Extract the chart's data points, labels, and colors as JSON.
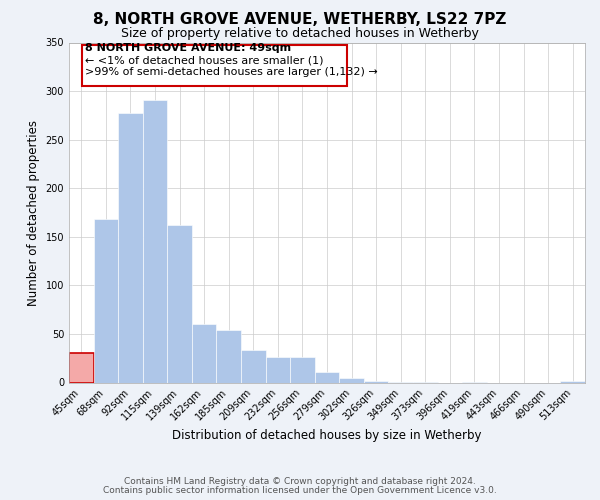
{
  "title": "8, NORTH GROVE AVENUE, WETHERBY, LS22 7PZ",
  "subtitle": "Size of property relative to detached houses in Wetherby",
  "xlabel": "Distribution of detached houses by size in Wetherby",
  "ylabel": "Number of detached properties",
  "bar_labels": [
    "45sqm",
    "68sqm",
    "92sqm",
    "115sqm",
    "139sqm",
    "162sqm",
    "185sqm",
    "209sqm",
    "232sqm",
    "256sqm",
    "279sqm",
    "302sqm",
    "326sqm",
    "349sqm",
    "373sqm",
    "396sqm",
    "419sqm",
    "443sqm",
    "466sqm",
    "490sqm",
    "513sqm"
  ],
  "bar_heights": [
    30,
    168,
    277,
    291,
    162,
    60,
    54,
    33,
    26,
    26,
    11,
    5,
    2,
    1,
    1,
    0,
    1,
    0,
    0,
    0,
    2
  ],
  "bar_color_highlight": "#f4a9a8",
  "bar_color_normal": "#aec6e8",
  "highlight_index": 0,
  "ylim": [
    0,
    350
  ],
  "yticks": [
    0,
    50,
    100,
    150,
    200,
    250,
    300,
    350
  ],
  "annotation_title": "8 NORTH GROVE AVENUE: 49sqm",
  "annotation_line1": "← <1% of detached houses are smaller (1)",
  "annotation_line2": ">99% of semi-detached houses are larger (1,132) →",
  "footnote1": "Contains HM Land Registry data © Crown copyright and database right 2024.",
  "footnote2": "Contains public sector information licensed under the Open Government Licence v3.0.",
  "bg_color": "#eef2f8",
  "plot_bg_color": "#ffffff",
  "title_fontsize": 11,
  "subtitle_fontsize": 9,
  "axis_label_fontsize": 8.5,
  "tick_label_fontsize": 7,
  "annotation_fontsize": 8,
  "footnote_fontsize": 6.5
}
